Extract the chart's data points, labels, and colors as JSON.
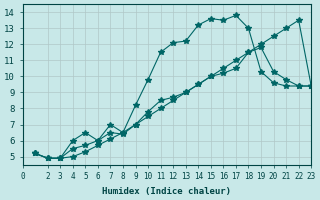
{
  "xlabel": "Humidex (Indice chaleur)",
  "ylabel": "",
  "xlim": [
    0,
    23
  ],
  "ylim": [
    4.5,
    14.5
  ],
  "xticks": [
    0,
    2,
    3,
    4,
    5,
    6,
    7,
    8,
    9,
    10,
    11,
    12,
    13,
    14,
    15,
    16,
    17,
    18,
    19,
    20,
    21,
    22,
    23
  ],
  "yticks": [
    5,
    6,
    7,
    8,
    9,
    10,
    11,
    12,
    13,
    14
  ],
  "bg_color": "#c8e8e8",
  "grid_color": "#b0c8c8",
  "line_color": "#006666",
  "line1": {
    "x": [
      1,
      2,
      3,
      4,
      5,
      6,
      7,
      8,
      9,
      10,
      11,
      12,
      13,
      14,
      15,
      16,
      17,
      18,
      19,
      20,
      21,
      22,
      23
    ],
    "y": [
      5.2,
      4.9,
      4.9,
      5.0,
      5.3,
      5.7,
      6.1,
      6.5,
      7.0,
      7.5,
      8.0,
      8.5,
      9.0,
      9.5,
      10.0,
      10.5,
      11.0,
      11.5,
      12.0,
      12.5,
      13.0,
      13.5,
      9.4
    ]
  },
  "line2": {
    "x": [
      1,
      2,
      3,
      4,
      5,
      6,
      7,
      8,
      9,
      10,
      11,
      12,
      13,
      14,
      15,
      16,
      17,
      18,
      19,
      20,
      21,
      22,
      23
    ],
    "y": [
      5.2,
      4.9,
      4.9,
      6.0,
      6.5,
      6.0,
      7.0,
      6.5,
      8.2,
      9.8,
      11.5,
      12.1,
      12.2,
      13.2,
      13.6,
      13.5,
      13.8,
      13.0,
      10.3,
      9.6,
      9.4,
      9.4,
      9.4
    ]
  },
  "line3": {
    "x": [
      1,
      2,
      3,
      4,
      5,
      6,
      7,
      8,
      9,
      10,
      11,
      12,
      13,
      14,
      15,
      16,
      17,
      18,
      19,
      20,
      21,
      22,
      23
    ],
    "y": [
      5.2,
      4.9,
      4.9,
      5.5,
      5.7,
      6.0,
      6.5,
      6.4,
      7.0,
      7.8,
      8.5,
      8.7,
      9.0,
      9.5,
      10.0,
      10.2,
      10.5,
      11.5,
      11.8,
      10.3,
      9.8,
      9.4,
      9.4
    ]
  }
}
